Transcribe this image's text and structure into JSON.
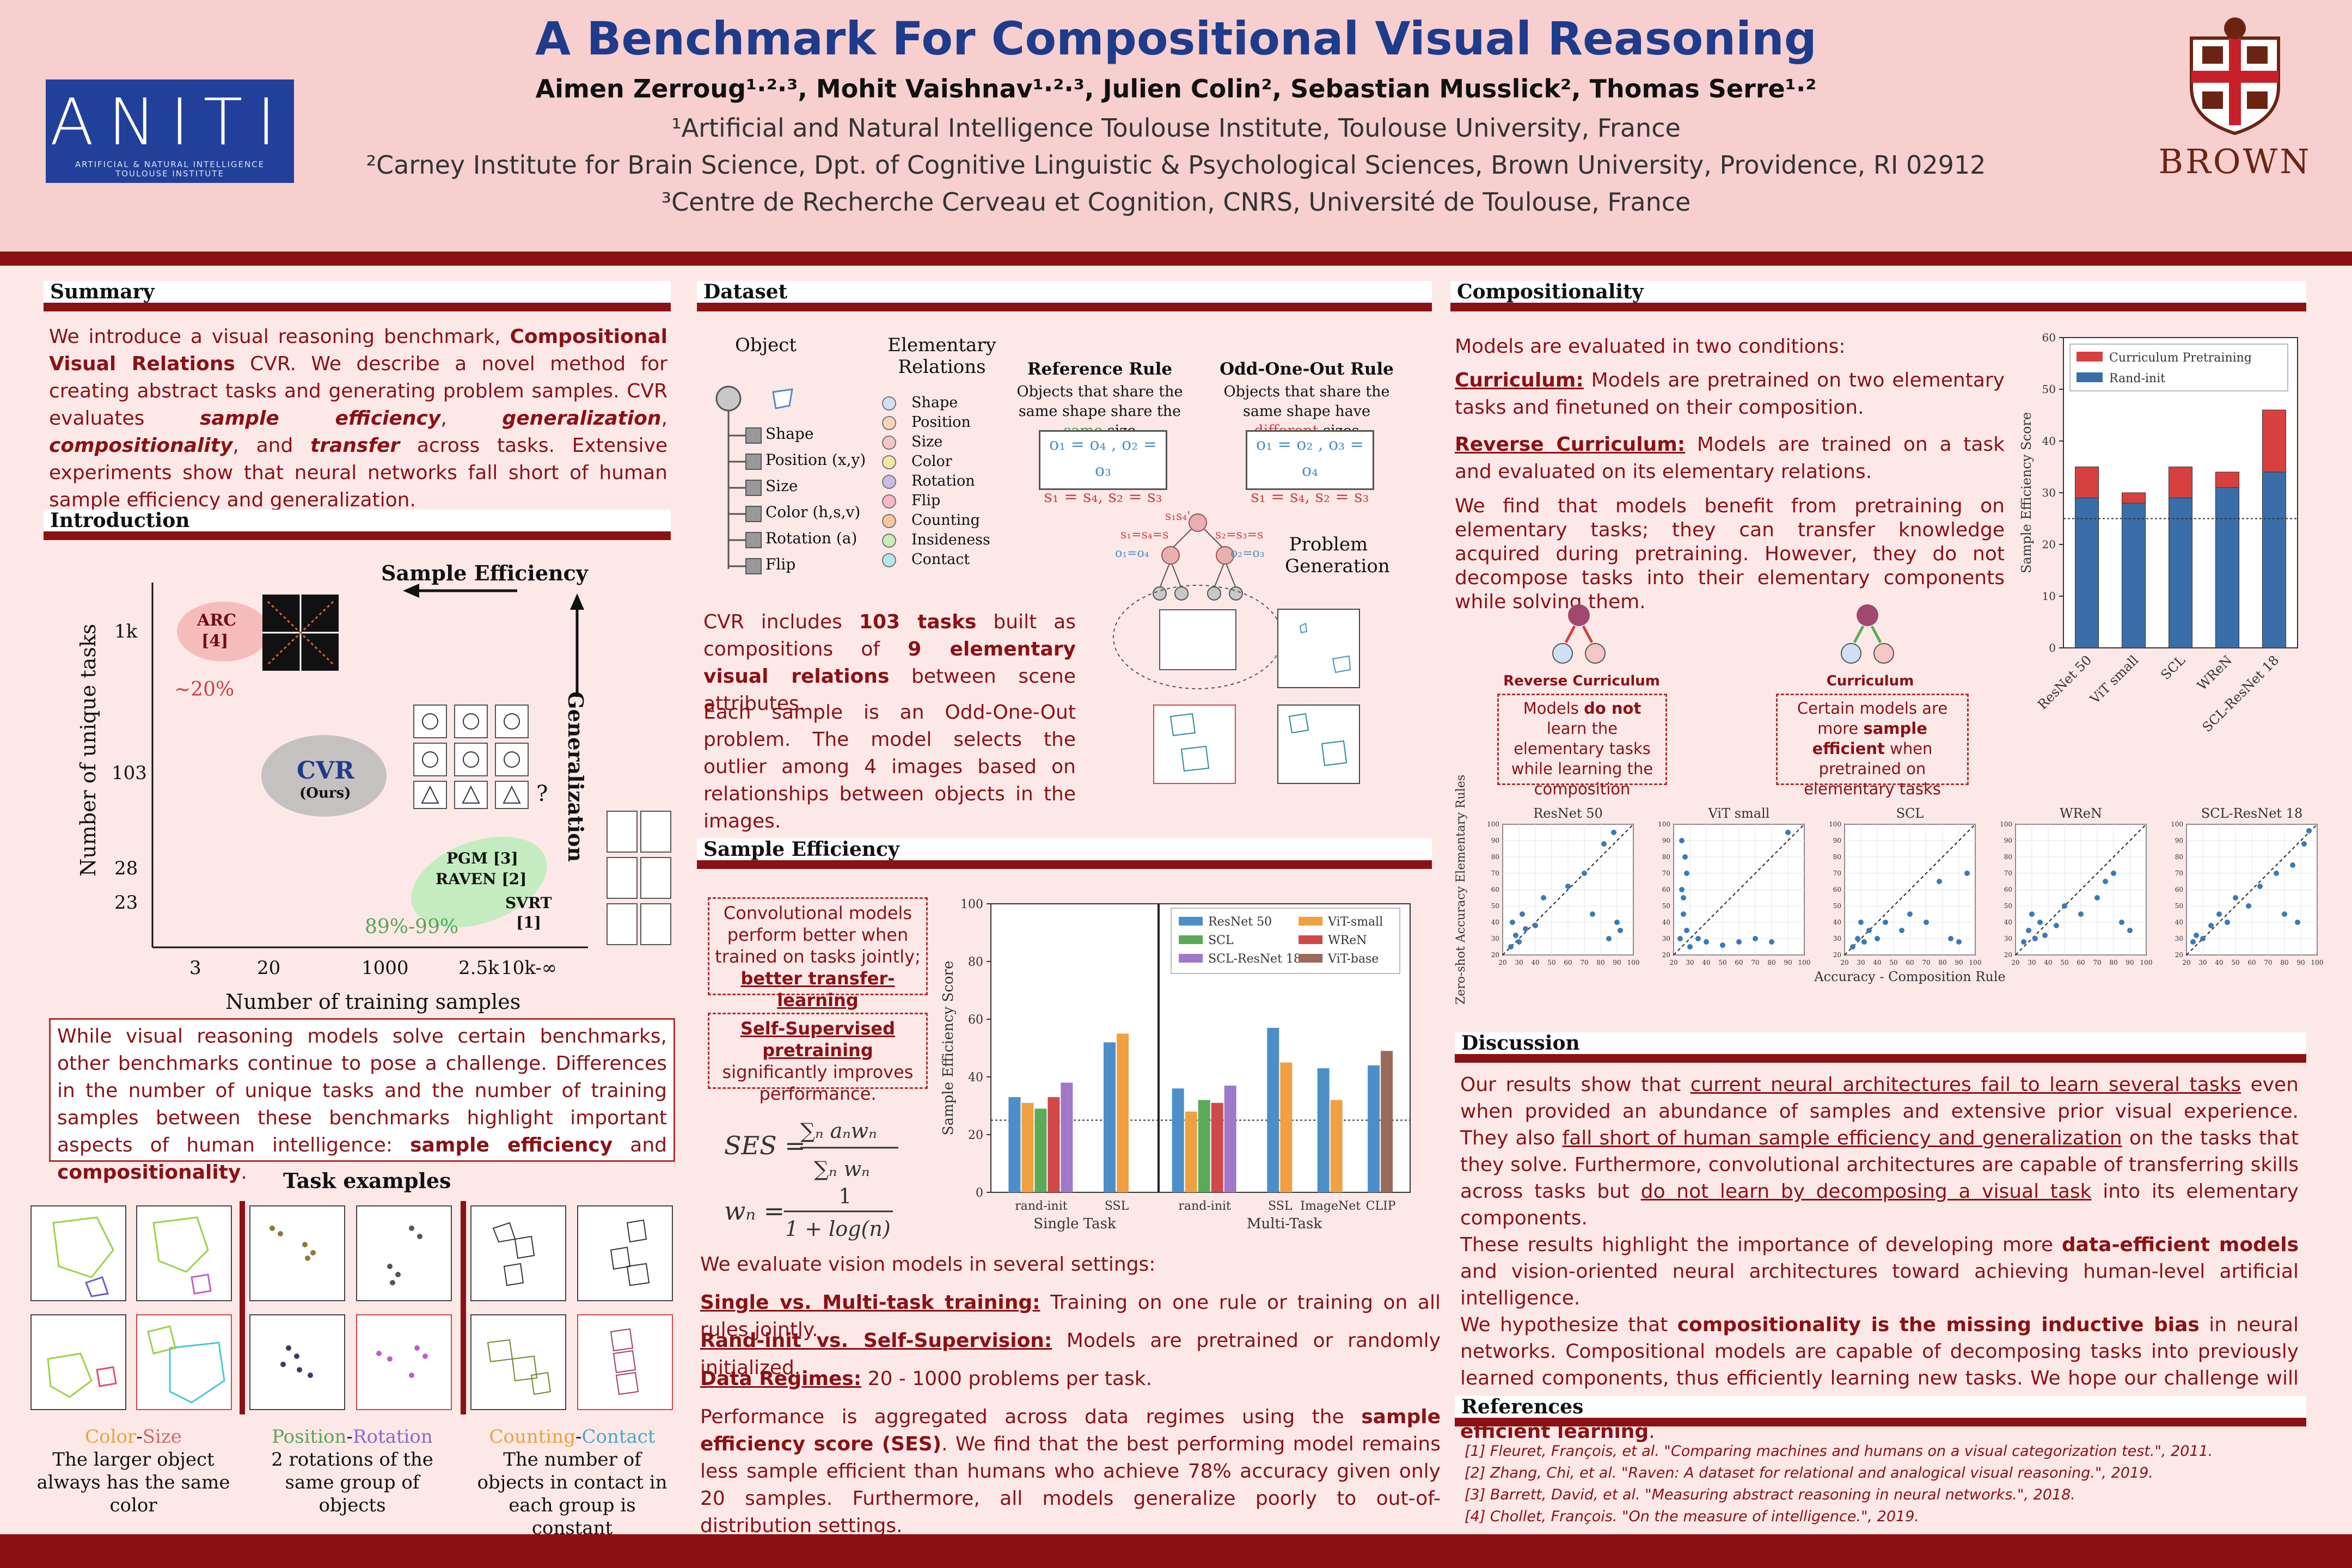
{
  "header": {
    "title": "A Benchmark For Compositional Visual Reasoning",
    "authors": "Aimen Zerroug¹·²·³, Mohit Vaishnav¹·²·³, Julien Colin², Sebastian Musslick², Thomas Serre¹·²",
    "affiliation_1": "¹Artificial and Natural Intelligence Toulouse Institute, Toulouse University, France",
    "affiliation_2": "²Carney Institute for Brain Science, Dpt. of Cognitive Linguistic & Psychological Sciences, Brown University, Providence, RI 02912",
    "affiliation_3": "³Centre de Recherche Cerveau et Cognition, CNRS, Université de Toulouse, France",
    "logo_left": "ANITI",
    "logo_left_sub1": "ARTIFICIAL & NATURAL INTELLIGENCE",
    "logo_left_sub2": "TOULOUSE INSTITUTE",
    "logo_right": "BROWN"
  },
  "summary": {
    "heading": "Summary",
    "text_1": "We introduce a visual reasoning benchmark, ",
    "bold_1": "Compositional Visual Relations",
    "text_2": " CVR. We describe a novel method for creating abstract tasks and generating problem samples. CVR evaluates ",
    "bold_2": "sample efficiency",
    "text_3": ", ",
    "bold_3": "generalization",
    "text_4": ", ",
    "bold_4": "compositionality",
    "text_5": ", and ",
    "bold_5": "transfer",
    "text_6": " across tasks. Extensive experiments show that neural networks fall short of human sample efficiency and generalization."
  },
  "introduction": {
    "heading": "Introduction",
    "plot_title_x": "Sample Efficiency",
    "plot_title_y": "Generalization",
    "ylabel": "Number of unique tasks",
    "xlabel": "Number of training samples",
    "yticks": [
      "1k",
      "103",
      "28",
      "23"
    ],
    "xticks": [
      "3",
      "20",
      "1000",
      "2.5k",
      "10k-∞"
    ],
    "arc_label": "ARC",
    "arc_ref": "[4]",
    "arc_pct": "~20%",
    "cvr_label": "CVR",
    "cvr_sub": "(Ours)",
    "pgm_label": "PGM [3]",
    "raven_label": "RAVEN [2]",
    "svrt_label": "SVRT",
    "svrt_ref": "[1]",
    "pct_other": "89%-99%",
    "qmark": "?",
    "box_text_1": "While visual reasoning models solve certain benchmarks, other benchmarks continue to pose a challenge. Differences in the number of unique tasks and the number of training samples between these benchmarks highlight important aspects of human intelligence: ",
    "box_bold_1": "sample efficiency",
    "box_text_2": " and ",
    "box_bold_2": "compositionality",
    "box_text_3": ".",
    "task_examples_title": "Task examples",
    "task1_a": "Color",
    "task1_b": "Size",
    "task1_desc": "The larger object always has the same color",
    "task2_a": "Position",
    "task2_b": "Rotation",
    "task2_desc": "2 rotations of the same group of objects",
    "task3_a": "Counting",
    "task3_b": "Contact",
    "task3_desc": "The number of objects in contact in each group is constant",
    "colors": {
      "color": "#e8a33a",
      "size": "#d16a6a",
      "position": "#5aa55a",
      "rotation": "#8a6ac8",
      "counting": "#e8a33a",
      "contact": "#4aa8c8"
    }
  },
  "dataset": {
    "heading": "Dataset",
    "object_label": "Object",
    "relations_label": "Elementary Relations",
    "attributes": [
      "Shape",
      "Position (x,y)",
      "Size",
      "Color (h,s,v)",
      "Rotation (a)",
      "Flip"
    ],
    "relations": [
      "Shape",
      "Position",
      "Size",
      "Color",
      "Rotation",
      "Flip",
      "Counting",
      "Insideness",
      "Contact"
    ],
    "relation_colors": [
      "#cfe0f5",
      "#f5d6b8",
      "#f5c6c6",
      "#f5e6a8",
      "#c9bde8",
      "#f5b8c8",
      "#f5c99a",
      "#c9ecb8",
      "#b8e6ec"
    ],
    "ref_rule_title": "Reference Rule",
    "ref_rule_text_1": "Objects that share the same shape share the ",
    "ref_rule_same": "same",
    "ref_rule_text_2": " size",
    "odd_rule_title": "Odd-One-Out Rule",
    "odd_rule_text_1": "Objects that share the same shape have ",
    "odd_rule_diff": "different",
    "odd_rule_text_2": " sizes",
    "ref_formula_1": "o₁ = o₄ , o₂ = o₃",
    "ref_formula_2": "s₁ = s₄, s₂ = s₃",
    "odd_formula_1": "o₁ = o₂ , o₃ = o₄",
    "odd_formula_2": "s₁ = s₄, s₂ = s₃",
    "problem_generation": "Problem Generation",
    "tree_top": "s₁s₄'",
    "tree_left_1": "s₁=s₄=s",
    "tree_left_2": "o₁=o₄",
    "tree_right_1": "s₂=s₃=s",
    "tree_right_2": "o₂=o₃",
    "text_1": "CVR includes ",
    "bold_1": "103 tasks",
    "text_2": " built as compositions of ",
    "bold_2": "9 elementary visual relations",
    "text_3": " between scene attributes.",
    "text_4": "Each sample is an Odd-One-Out problem. The model selects the outlier among 4 images based on relationships between objects in the images."
  },
  "sample_efficiency": {
    "heading": "Sample Efficiency",
    "box1": "Convolutional models perform better when trained on tasks jointly; ",
    "box1_bold": "better transfer-learning",
    "box2_bold": "Self-Supervised pretraining",
    "box2": " significantly improves performance.",
    "intro": "We evaluate vision models in several settings:",
    "s1_title": "Single vs. Multi-task training:",
    "s1_text": " Training on one rule or training on all rules jointly.",
    "s2_title": "Rand-init vs. Self-Supervision:",
    "s2_text": " Models are pretrained or randomly initialized.",
    "s3_title": "Data Regimes:",
    "s3_text": " 20 - 1000 problems per task.",
    "p_1": "Performance is aggregated across data regimes using the ",
    "p_bold_1": "sample efficiency score (SES)",
    "p_2": ". We find that the best performing model remains less sample efficient than humans who achieve 78% accuracy given only 20 samples. Furthermore, all models generalize poorly to out-of-distribution settings."
  },
  "compositionality": {
    "heading": "Compositionality",
    "intro": "Models are evaluated in two conditions:",
    "c1_title": "Curriculum:",
    "c1_text": " Models are pretrained on two elementary tasks and finetuned on their composition.",
    "c2_title": "Reverse Curriculum:",
    "c2_text": " Models are trained on a task and evaluated on its elementary relations.",
    "text": "We find that models benefit from pretraining on elementary tasks; they can transfer knowledge acquired during pretraining. However, they do not decompose tasks into their elementary components while solving them.",
    "rev_label": "Reverse Curriculum",
    "cur_label": "Curriculum",
    "rev_box_1": "Models ",
    "rev_box_bold": "do not",
    "rev_box_2": " learn the elementary tasks while learning the composition",
    "cur_box_1": "Certain models are more ",
    "cur_box_bold": "sample efficient",
    "cur_box_2": " when pretrained on elementary tasks"
  },
  "discussion": {
    "heading": "Discussion",
    "t1": "Our results show that ",
    "u1": "current neural architectures fail to learn several tasks",
    "t2": " even when provided an abundance of samples and extensive prior visual experience. They also ",
    "u2": "fall short of human sample efficiency and generalization",
    "t3": " on the tasks that they solve. Furthermore, convolutional architectures are capable of transferring skills across tasks but ",
    "u3": "do not learn by decomposing a visual task",
    "t4": " into its elementary components.",
    "t5": "These results highlight the importance of developing more ",
    "b1": "data-efficient models",
    "t6": " and vision-oriented neural architectures toward achieving human-level artificial intelligence.",
    "t7": "We hypothesize that ",
    "b2": "compositionality is the missing inductive bias",
    "t8": " in neural networks. Compositional models are capable of decomposing tasks into previously learned components, thus efficiently learning new tasks. We hope our challenge will spur interest in the development of compositional neural architectures for more ",
    "b3": "efficient learning",
    "t9": "."
  },
  "references": {
    "heading": "References",
    "items": [
      "[1] Fleuret, François, et al. \"Comparing machines and humans on a visual categorization test.\", 2011.",
      "[2] Zhang, Chi, et al. \"Raven: A dataset for relational and analogical visual reasoning.\", 2019.",
      "[3] Barrett, David, et al. \"Measuring abstract reasoning in neural networks.\", 2018.",
      "[4] Chollet, François. \"On the measure of intelligence.\", 2019."
    ]
  },
  "chart_data": [
    {
      "type": "bar",
      "ylabel": "Sample Efficiency Score",
      "ylim": [
        0,
        100
      ],
      "yticks": [
        0,
        20,
        40,
        60,
        80,
        100
      ],
      "groups": [
        "rand-init",
        "SSL",
        "rand-init",
        "SSL",
        "ImageNet",
        "CLIP"
      ],
      "group_titles": [
        "Single Task",
        "Multi-Task"
      ],
      "legend": [
        "ResNet 50",
        "ViT-small",
        "SCL",
        "WReN",
        "SCL-ResNet 18",
        "ViT-base"
      ],
      "colors": [
        "#4c8fc8",
        "#f0a040",
        "#5aaa5a",
        "#d04848",
        "#a078c8",
        "#9a6a5a"
      ],
      "hline": 25,
      "values": {
        "single_rand_init": {
          "ResNet 50": 33,
          "ViT-small": 31,
          "SCL": 29,
          "WReN": 33,
          "SCL-ResNet 18": 38
        },
        "single_ssl": {
          "ResNet 50": 52,
          "ViT-small": 55
        },
        "multi_rand_init": {
          "ResNet 50": 36,
          "ViT-small": 28,
          "SCL": 32,
          "WReN": 31,
          "SCL-ResNet 18": 37
        },
        "multi_ssl": {
          "ResNet 50": 57,
          "ViT-small": 45
        },
        "multi_imagenet": {
          "ResNet 50": 43,
          "ViT-small": 32
        },
        "multi_clip": {
          "ResNet 50": 44,
          "ViT-base": 49
        }
      }
    },
    {
      "type": "bar",
      "ylabel": "Sample Efficiency Score",
      "ylim": [
        0,
        60
      ],
      "yticks": [
        0,
        10,
        20,
        30,
        40,
        50,
        60
      ],
      "categories": [
        "ResNet 50",
        "ViT small",
        "SCL",
        "WReN",
        "SCL-ResNet 18"
      ],
      "series": [
        {
          "name": "Curriculum Pretraining",
          "values": [
            35,
            30,
            35,
            34,
            46
          ]
        },
        {
          "name": "Rand-init",
          "values": [
            29,
            28,
            29,
            31,
            34
          ]
        }
      ],
      "colors": [
        "#d84040",
        "#3a6ea8"
      ],
      "hline": 25
    },
    {
      "type": "scatter",
      "ylabel": "Zero-shot Accuracy Elementary Rules",
      "xlabel": "Accuracy - Composition Rule",
      "panels": [
        "ResNet 50",
        "ViT small",
        "SCL",
        "WReN",
        "SCL-ResNet 18"
      ],
      "ticks": [
        "20",
        "30",
        "40",
        "50",
        "60",
        "70",
        "80",
        "90",
        "100"
      ],
      "xlim": [
        20,
        100
      ],
      "ylim": [
        20,
        100
      ]
    }
  ]
}
